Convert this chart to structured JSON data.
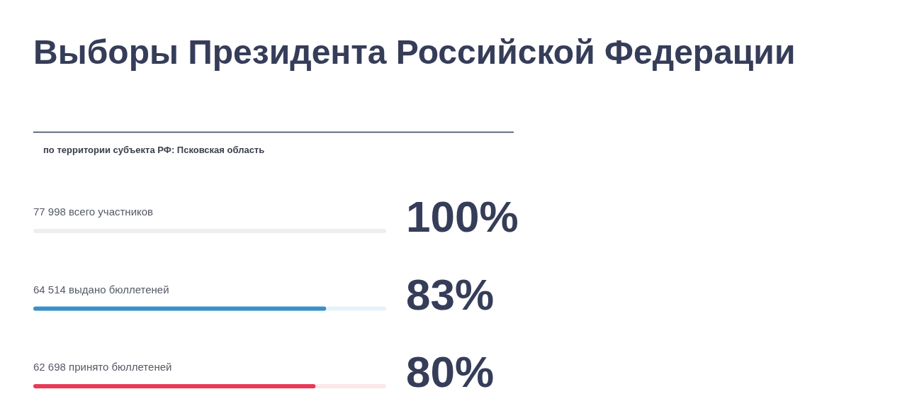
{
  "chart_data": {
    "type": "bar",
    "orientation": "horizontal",
    "title": "Выборы Президента Российской Федерации",
    "subtitle": "по территории субъекта РФ: Псковская область",
    "categories": [
      "77 998 всего участников",
      "64 514 выдано бюллетеней",
      "62 698 принято бюллетеней"
    ],
    "values": [
      100,
      83,
      80
    ],
    "colors": [
      "#eeeeee",
      "#3a8fc8",
      "#e83a56"
    ],
    "value_labels": [
      "100%",
      "83%",
      "80%"
    ],
    "xlim": [
      0,
      100
    ]
  }
}
